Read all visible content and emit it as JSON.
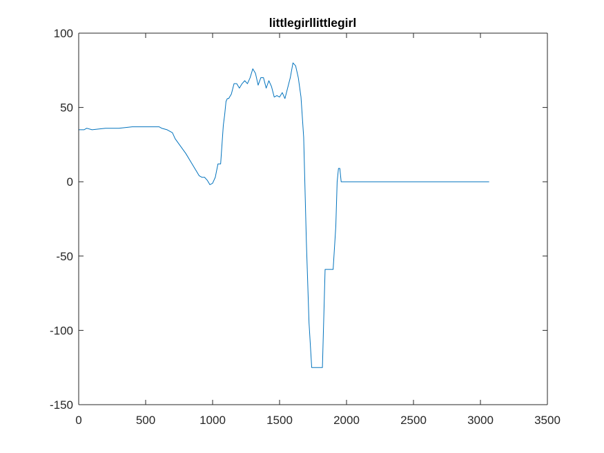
{
  "chart_data": {
    "type": "line",
    "title": "littlegirllittlegirl",
    "xlabel": "",
    "ylabel": "",
    "xlim": [
      0,
      3500
    ],
    "ylim": [
      -150,
      100
    ],
    "xticks": [
      0,
      500,
      1000,
      1500,
      2000,
      2500,
      3000,
      3500
    ],
    "yticks": [
      100,
      50,
      0,
      -50,
      -100,
      -150
    ],
    "grid": false,
    "legend": "none",
    "colors": {
      "line": "#0072BD",
      "axes": "#262626",
      "background": "#ffffff"
    },
    "series": [
      {
        "x": [
          0,
          40,
          60,
          100,
          200,
          300,
          400,
          500,
          600,
          620,
          660,
          700,
          720,
          760,
          800,
          840,
          880,
          900,
          920,
          940,
          960,
          980,
          1000,
          1020,
          1040,
          1060,
          1080,
          1090,
          1100,
          1110,
          1120,
          1140,
          1160,
          1180,
          1200,
          1220,
          1240,
          1260,
          1280,
          1300,
          1320,
          1340,
          1360,
          1380,
          1400,
          1420,
          1440,
          1460,
          1480,
          1500,
          1520,
          1540,
          1560,
          1580,
          1600,
          1620,
          1640,
          1660,
          1680,
          1700,
          1720,
          1740,
          1760,
          1800,
          1820,
          1840,
          1880,
          1890,
          1900,
          1920,
          1930,
          1940,
          1950,
          1960,
          2000,
          2500,
          3000,
          3065
        ],
        "y": [
          35,
          35,
          36,
          35,
          36,
          36,
          37,
          37,
          37,
          36,
          35,
          33,
          29,
          24,
          19,
          13,
          7,
          4,
          3,
          3,
          1,
          -2,
          -1,
          3,
          12,
          12,
          38,
          45,
          54,
          56,
          56,
          59,
          66,
          66,
          63,
          66,
          68,
          66,
          70,
          76,
          73,
          65,
          70,
          70,
          63,
          68,
          64,
          57,
          58,
          57,
          60,
          56,
          63,
          70,
          80,
          78,
          70,
          57,
          30,
          -40,
          -95,
          -125,
          -125,
          -125,
          -125,
          -59,
          -59,
          -59,
          -59,
          -30,
          0,
          9,
          9,
          0,
          0,
          0,
          0,
          0
        ]
      }
    ]
  }
}
